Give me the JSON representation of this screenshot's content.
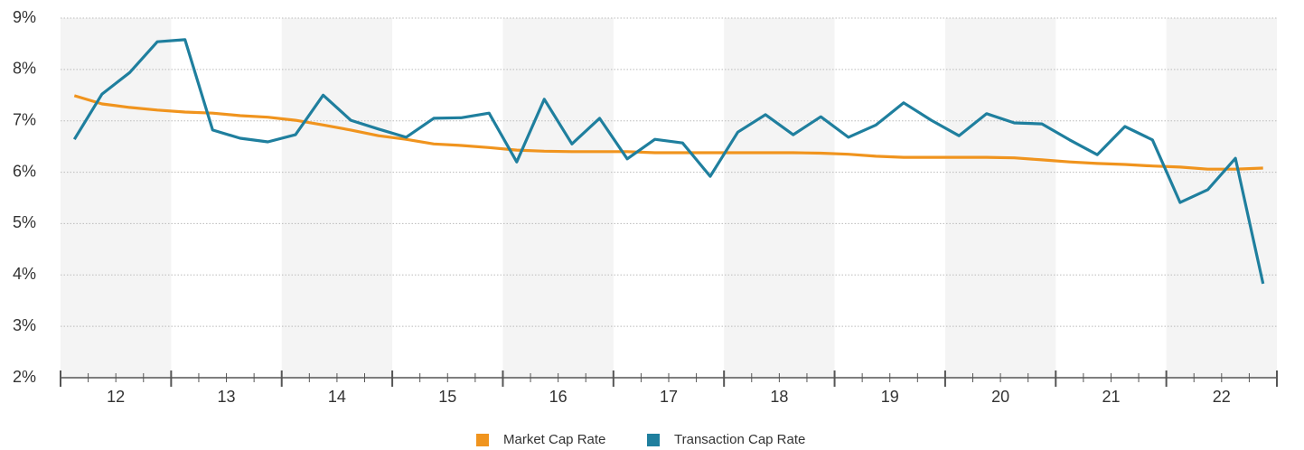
{
  "chart_data": {
    "type": "line",
    "categories": [
      null,
      "12",
      null,
      null,
      null,
      "13",
      null,
      null,
      null,
      "14",
      null,
      null,
      null,
      "15",
      null,
      null,
      null,
      "16",
      null,
      null,
      null,
      "17",
      null,
      null,
      null,
      "18",
      null,
      null,
      null,
      "19",
      null,
      null,
      null,
      "20",
      null,
      null,
      null,
      "21",
      null,
      null,
      null,
      "22",
      null,
      null
    ],
    "series": [
      {
        "name": "Market Cap Rate",
        "color": "#f0941e",
        "values": [
          7.49,
          7.33,
          7.26,
          7.21,
          7.17,
          7.15,
          7.1,
          7.07,
          7.01,
          6.92,
          6.82,
          6.71,
          6.64,
          6.55,
          6.52,
          6.48,
          6.43,
          6.41,
          6.4,
          6.4,
          6.4,
          6.38,
          6.38,
          6.38,
          6.38,
          6.38,
          6.38,
          6.37,
          6.35,
          6.31,
          6.29,
          6.29,
          6.29,
          6.29,
          6.28,
          6.24,
          6.2,
          6.17,
          6.15,
          6.12,
          6.1,
          6.06,
          6.06,
          6.08
        ]
      },
      {
        "name": "Transaction Cap Rate",
        "color": "#1f7f9e",
        "values": [
          6.64,
          7.52,
          7.94,
          8.54,
          8.58,
          6.82,
          6.66,
          6.59,
          6.73,
          7.5,
          7.01,
          6.84,
          6.68,
          7.05,
          7.06,
          7.15,
          6.2,
          7.42,
          6.55,
          7.05,
          6.26,
          6.64,
          6.57,
          5.92,
          6.78,
          7.12,
          6.73,
          7.08,
          6.68,
          6.92,
          7.35,
          7.01,
          6.71,
          7.14,
          6.96,
          6.94,
          6.63,
          6.34,
          6.89,
          6.63,
          5.41,
          5.66,
          6.27,
          3.83
        ]
      }
    ],
    "ylim": [
      2,
      9
    ],
    "yticks": [
      {
        "value": 2,
        "label": "2%"
      },
      {
        "value": 3,
        "label": "3%"
      },
      {
        "value": 4,
        "label": "4%"
      },
      {
        "value": 5,
        "label": "5%"
      },
      {
        "value": 6,
        "label": "6%"
      },
      {
        "value": 7,
        "label": "7%"
      },
      {
        "value": 8,
        "label": "8%"
      },
      {
        "value": 9,
        "label": "9%"
      }
    ],
    "grid": true,
    "legend": "bottom"
  }
}
